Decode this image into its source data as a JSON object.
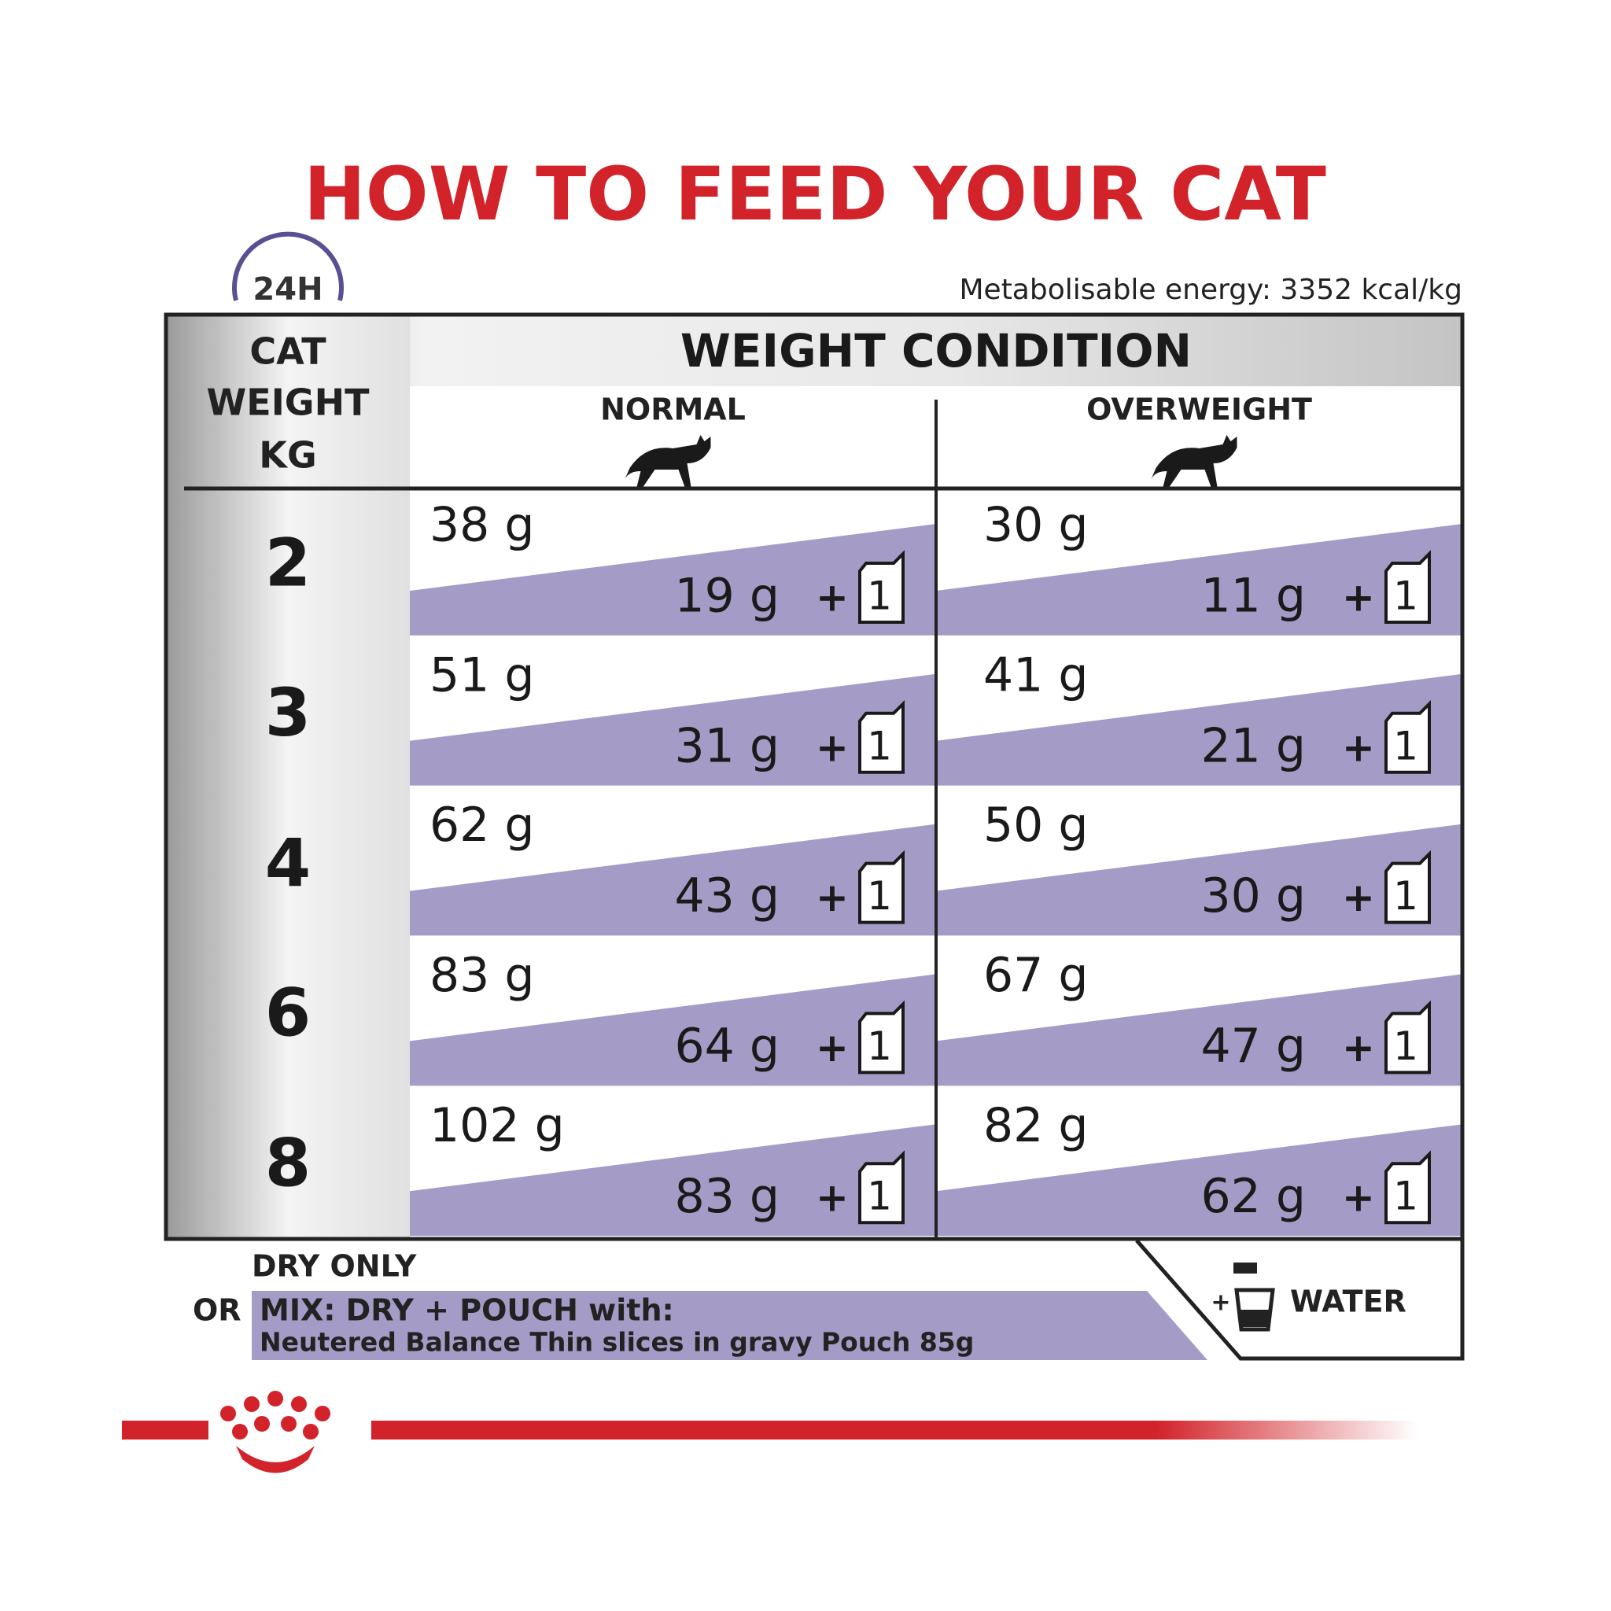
{
  "title": "HOW TO FEED YOUR CAT",
  "clock_label": "24H",
  "energy": "Metabolisable energy: 3352 kcal/kg",
  "table": {
    "weight_header": [
      "CAT",
      "WEIGHT",
      "KG"
    ],
    "condition_header": "WEIGHT CONDITION",
    "columns": [
      "NORMAL",
      "OVERWEIGHT"
    ],
    "plus": "+",
    "pouch": "1",
    "rows": [
      {
        "weight": "2",
        "cells": [
          {
            "dry": "38 g",
            "mix": "19 g"
          },
          {
            "dry": "30 g",
            "mix": "11 g"
          }
        ]
      },
      {
        "weight": "3",
        "cells": [
          {
            "dry": "51 g",
            "mix": "31 g"
          },
          {
            "dry": "41 g",
            "mix": "21 g"
          }
        ]
      },
      {
        "weight": "4",
        "cells": [
          {
            "dry": "62 g",
            "mix": "43 g"
          },
          {
            "dry": "50 g",
            "mix": "30 g"
          }
        ]
      },
      {
        "weight": "6",
        "cells": [
          {
            "dry": "83 g",
            "mix": "64 g"
          },
          {
            "dry": "67 g",
            "mix": "47 g"
          }
        ]
      },
      {
        "weight": "8",
        "cells": [
          {
            "dry": "102 g",
            "mix": "83 g"
          },
          {
            "dry": "82 g",
            "mix": "62 g"
          }
        ]
      }
    ]
  },
  "footer": {
    "dry_only": "DRY ONLY",
    "or": "OR",
    "mix": "MIX: DRY + POUCH with:",
    "pouch_name": "Neutered Balance Thin slices in gravy Pouch 85g",
    "water_plus": "+",
    "water": "WATER"
  }
}
